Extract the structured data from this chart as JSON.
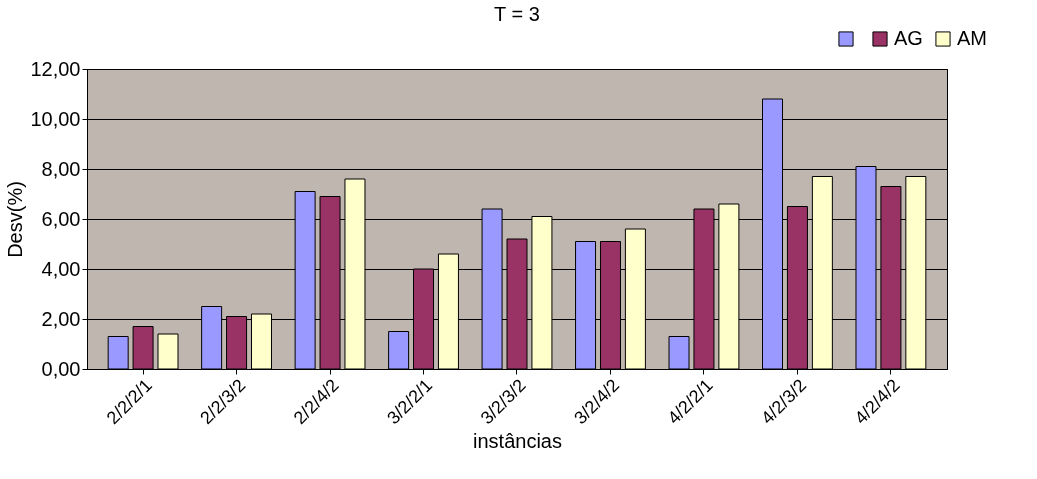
{
  "chart_data": {
    "type": "bar",
    "title": "T = 3",
    "xlabel": "instâncias",
    "ylabel": "Desv(%)",
    "categories": [
      "2/2/2/1",
      "2/2/3/2",
      "2/2/4/2",
      "3/2/2/1",
      "3/2/3/2",
      "3/2/4/2",
      "4/2/2/1",
      "4/2/3/2",
      "4/2/4/2"
    ],
    "series": [
      {
        "color": "#9999ff",
        "values": [
          1.3,
          2.5,
          7.1,
          1.5,
          6.4,
          5.1,
          1.3,
          10.8,
          8.1
        ]
      },
      {
        "name": "AG",
        "color": "#993366",
        "values": [
          1.7,
          2.1,
          6.9,
          4.0,
          5.2,
          5.1,
          6.4,
          6.5,
          7.3
        ]
      },
      {
        "name": "AM",
        "color": "#ffffcc",
        "values": [
          1.4,
          2.2,
          7.6,
          4.6,
          6.1,
          5.6,
          6.6,
          7.7,
          7.7
        ]
      }
    ],
    "ylim": [
      0,
      12
    ],
    "yticks": [
      {
        "value": 0,
        "label": "0,00"
      },
      {
        "value": 2,
        "label": "2,00"
      },
      {
        "value": 4,
        "label": "4,00"
      },
      {
        "value": 6,
        "label": "6,00"
      },
      {
        "value": 8,
        "label": "8,00"
      },
      {
        "value": 10,
        "label": "10,00"
      },
      {
        "value": 12,
        "label": "12,00"
      }
    ],
    "grid": "y",
    "legend": "top right"
  }
}
